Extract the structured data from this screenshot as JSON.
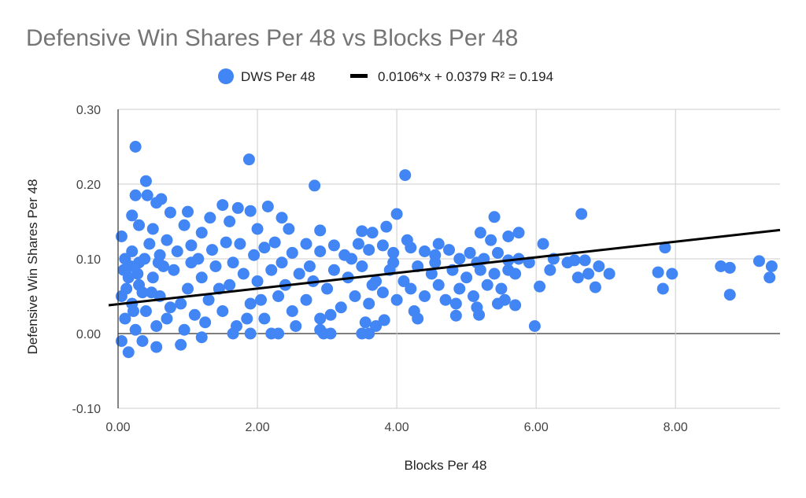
{
  "chart_data": {
    "type": "scatter",
    "title": "Defensive Win Shares Per 48 vs Blocks Per 48",
    "xlabel": "Blocks Per 48",
    "ylabel": "Defensive Win Shares Per 48",
    "xlim": [
      0,
      9.5
    ],
    "ylim": [
      -0.1,
      0.3
    ],
    "x_ticks": [
      "0.00",
      "2.00",
      "4.00",
      "6.00",
      "8.00"
    ],
    "x_tick_values": [
      0,
      2,
      4,
      6,
      8
    ],
    "y_ticks": [
      "-0.10",
      "0.00",
      "0.10",
      "0.20",
      "0.30"
    ],
    "y_tick_values": [
      -0.1,
      0,
      0.1,
      0.2,
      0.3
    ],
    "grid": true,
    "legend_position": "top",
    "series": [
      {
        "name": "DWS Per 48",
        "color": "#4285f4",
        "marker": "circle",
        "points": [
          [
            0.25,
            0.25
          ],
          [
            1.88,
            0.233
          ],
          [
            4.12,
            0.212
          ],
          [
            0.4,
            0.204
          ],
          [
            2.82,
            0.198
          ],
          [
            0.25,
            0.185
          ],
          [
            0.42,
            0.185
          ],
          [
            0.62,
            0.18
          ],
          [
            0.55,
            0.175
          ],
          [
            1.5,
            0.172
          ],
          [
            2.15,
            0.17
          ],
          [
            1.72,
            0.168
          ],
          [
            0.2,
            0.158
          ],
          [
            0.75,
            0.162
          ],
          [
            1.0,
            0.163
          ],
          [
            1.9,
            0.164
          ],
          [
            2.35,
            0.155
          ],
          [
            1.32,
            0.155
          ],
          [
            4.0,
            0.16
          ],
          [
            5.4,
            0.156
          ],
          [
            6.65,
            0.16
          ],
          [
            0.05,
            0.13
          ],
          [
            0.3,
            0.145
          ],
          [
            0.5,
            0.14
          ],
          [
            0.95,
            0.145
          ],
          [
            1.2,
            0.135
          ],
          [
            1.6,
            0.15
          ],
          [
            2.0,
            0.14
          ],
          [
            2.45,
            0.14
          ],
          [
            2.9,
            0.138
          ],
          [
            3.5,
            0.137
          ],
          [
            3.65,
            0.135
          ],
          [
            3.85,
            0.143
          ],
          [
            4.15,
            0.125
          ],
          [
            4.6,
            0.12
          ],
          [
            5.2,
            0.135
          ],
          [
            5.35,
            0.125
          ],
          [
            5.6,
            0.13
          ],
          [
            5.75,
            0.135
          ],
          [
            6.1,
            0.12
          ],
          [
            6.25,
            0.1
          ],
          [
            6.45,
            0.095
          ],
          [
            6.55,
            0.098
          ],
          [
            6.7,
            0.098
          ],
          [
            6.9,
            0.09
          ],
          [
            6.2,
            0.085
          ],
          [
            6.6,
            0.075
          ],
          [
            6.75,
            0.08
          ],
          [
            6.85,
            0.062
          ],
          [
            7.05,
            0.08
          ],
          [
            7.75,
            0.082
          ],
          [
            7.85,
            0.115
          ],
          [
            7.95,
            0.08
          ],
          [
            7.82,
            0.06
          ],
          [
            8.65,
            0.09
          ],
          [
            8.78,
            0.088
          ],
          [
            8.78,
            0.052
          ],
          [
            9.2,
            0.097
          ],
          [
            9.38,
            0.09
          ],
          [
            9.35,
            0.075
          ],
          [
            6.05,
            0.063
          ],
          [
            5.98,
            0.01
          ],
          [
            5.45,
            0.04
          ],
          [
            5.55,
            0.045
          ],
          [
            5.7,
            0.038
          ],
          [
            4.85,
            0.024
          ],
          [
            5.15,
            0.035
          ],
          [
            5.18,
            0.025
          ],
          [
            4.3,
            0.02
          ],
          [
            3.5,
            0.0
          ],
          [
            3.6,
            0.0
          ],
          [
            3.7,
            0.01
          ],
          [
            3.55,
            0.015
          ],
          [
            3.82,
            0.018
          ],
          [
            2.95,
            0.0
          ],
          [
            3.05,
            0.0
          ],
          [
            2.2,
            0.0
          ],
          [
            2.9,
            0.005
          ],
          [
            0.15,
            -0.025
          ],
          [
            0.05,
            -0.01
          ],
          [
            0.55,
            -0.018
          ],
          [
            0.9,
            -0.015
          ],
          [
            0.35,
            -0.01
          ],
          [
            1.2,
            -0.005
          ],
          [
            1.65,
            0.0
          ],
          [
            1.9,
            0.0
          ],
          [
            2.3,
            0.0
          ],
          [
            0.1,
            0.1
          ],
          [
            0.2,
            0.11
          ],
          [
            0.3,
            0.095
          ],
          [
            0.45,
            0.12
          ],
          [
            0.6,
            0.105
          ],
          [
            0.7,
            0.125
          ],
          [
            0.85,
            0.11
          ],
          [
            1.05,
            0.118
          ],
          [
            1.15,
            0.1
          ],
          [
            1.35,
            0.112
          ],
          [
            1.55,
            0.122
          ],
          [
            1.75,
            0.12
          ],
          [
            1.95,
            0.105
          ],
          [
            2.1,
            0.115
          ],
          [
            2.25,
            0.122
          ],
          [
            2.5,
            0.108
          ],
          [
            2.7,
            0.12
          ],
          [
            2.9,
            0.11
          ],
          [
            3.1,
            0.118
          ],
          [
            3.25,
            0.105
          ],
          [
            3.45,
            0.12
          ],
          [
            3.6,
            0.112
          ],
          [
            3.8,
            0.118
          ],
          [
            3.95,
            0.108
          ],
          [
            4.2,
            0.115
          ],
          [
            4.4,
            0.11
          ],
          [
            4.55,
            0.105
          ],
          [
            4.75,
            0.112
          ],
          [
            4.9,
            0.1
          ],
          [
            5.05,
            0.108
          ],
          [
            5.25,
            0.1
          ],
          [
            5.45,
            0.108
          ],
          [
            5.6,
            0.098
          ],
          [
            5.75,
            0.1
          ],
          [
            5.9,
            0.095
          ],
          [
            0.05,
            0.05
          ],
          [
            0.1,
            0.02
          ],
          [
            0.2,
            0.04
          ],
          [
            0.3,
            0.065
          ],
          [
            0.4,
            0.03
          ],
          [
            0.5,
            0.075
          ],
          [
            0.6,
            0.05
          ],
          [
            0.7,
            0.02
          ],
          [
            0.8,
            0.085
          ],
          [
            0.9,
            0.04
          ],
          [
            1.0,
            0.06
          ],
          [
            1.1,
            0.025
          ],
          [
            1.2,
            0.075
          ],
          [
            1.3,
            0.045
          ],
          [
            1.4,
            0.09
          ],
          [
            1.5,
            0.03
          ],
          [
            1.6,
            0.065
          ],
          [
            1.7,
            0.01
          ],
          [
            1.8,
            0.08
          ],
          [
            1.9,
            0.04
          ],
          [
            2.0,
            0.07
          ],
          [
            2.1,
            0.02
          ],
          [
            2.2,
            0.085
          ],
          [
            2.3,
            0.05
          ],
          [
            2.4,
            0.065
          ],
          [
            2.5,
            0.03
          ],
          [
            2.6,
            0.08
          ],
          [
            2.7,
            0.045
          ],
          [
            2.8,
            0.07
          ],
          [
            2.9,
            0.02
          ],
          [
            3.0,
            0.06
          ],
          [
            3.1,
            0.085
          ],
          [
            3.2,
            0.035
          ],
          [
            3.3,
            0.075
          ],
          [
            3.4,
            0.05
          ],
          [
            3.5,
            0.09
          ],
          [
            3.6,
            0.04
          ],
          [
            3.7,
            0.07
          ],
          [
            3.8,
            0.055
          ],
          [
            3.9,
            0.085
          ],
          [
            4.0,
            0.045
          ],
          [
            4.1,
            0.07
          ],
          [
            4.2,
            0.06
          ],
          [
            4.3,
            0.09
          ],
          [
            4.4,
            0.05
          ],
          [
            4.5,
            0.08
          ],
          [
            4.6,
            0.065
          ],
          [
            4.7,
            0.045
          ],
          [
            4.8,
            0.085
          ],
          [
            4.9,
            0.06
          ],
          [
            5.0,
            0.075
          ],
          [
            5.1,
            0.05
          ],
          [
            5.2,
            0.085
          ],
          [
            5.3,
            0.065
          ],
          [
            5.4,
            0.08
          ],
          [
            5.5,
            0.06
          ],
          [
            5.6,
            0.085
          ],
          [
            5.7,
            0.08
          ],
          [
            0.15,
            0.075
          ],
          [
            0.25,
            0.005
          ],
          [
            0.35,
            0.055
          ],
          [
            0.55,
            0.01
          ],
          [
            0.65,
            0.09
          ],
          [
            0.75,
            0.035
          ],
          [
            0.95,
            0.005
          ],
          [
            1.05,
            0.095
          ],
          [
            1.25,
            0.015
          ],
          [
            1.45,
            0.06
          ],
          [
            1.65,
            0.095
          ],
          [
            1.85,
            0.02
          ],
          [
            2.05,
            0.045
          ],
          [
            2.35,
            0.095
          ],
          [
            2.55,
            0.01
          ],
          [
            2.75,
            0.09
          ],
          [
            3.05,
            0.025
          ],
          [
            3.35,
            0.1
          ],
          [
            3.65,
            0.065
          ],
          [
            3.95,
            0.095
          ],
          [
            4.25,
            0.03
          ],
          [
            4.55,
            0.095
          ],
          [
            4.85,
            0.04
          ],
          [
            5.15,
            0.095
          ],
          [
            0.08,
            0.085
          ],
          [
            0.12,
            0.06
          ],
          [
            0.18,
            0.09
          ],
          [
            0.22,
            0.03
          ],
          [
            0.28,
            0.08
          ],
          [
            0.38,
            0.1
          ],
          [
            0.48,
            0.055
          ],
          [
            0.58,
            0.095
          ]
        ]
      }
    ],
    "trendline": {
      "name": "0.0106*x + 0.0379 R² = 0.194",
      "slope": 0.0106,
      "intercept": 0.0379,
      "r_squared": 0.194,
      "color": "#000000"
    }
  }
}
